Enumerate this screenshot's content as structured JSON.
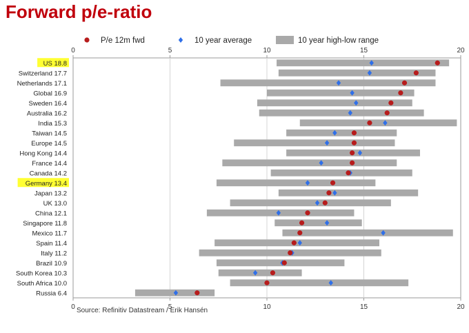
{
  "title": "Forward p/e-ratio",
  "source": "Source: Refinitiv Datastream / Erik Hansén",
  "colors": {
    "title": "#c0000c",
    "pe": "#b71c1c",
    "avg": "#2f6fe8",
    "range": "#a9a9a9",
    "highlight": "#ffff33"
  },
  "chart_data": {
    "type": "range-dot",
    "title": "Forward p/e-ratio",
    "xlim": [
      0,
      20
    ],
    "xticks": [
      0,
      5,
      10,
      15,
      20
    ],
    "xtick_labels": [
      "0",
      "5",
      "10",
      "15",
      "20"
    ],
    "grid": true,
    "legend_position": "top",
    "legend": [
      "P/e 12m fwd",
      "10 year average",
      "10 year high-low range"
    ],
    "categories": [
      "US 18.8",
      "Switzerland 17.7",
      "Netherlands 17.1",
      "Global 16.9",
      "Sweden 16.4",
      "Australia 16.2",
      "India 15.3",
      "Taiwan 14.5",
      "Europe 14.5",
      "Hong Kong 14.4",
      "France 14.4",
      "Canada 14.2",
      "Germany 13.4",
      "Japan 13.2",
      "UK 13.0",
      "China 12.1",
      "Singapore 11.8",
      "Mexico 11.7",
      "Spain 11.4",
      "Italy 11.2",
      "Brazil 10.9",
      "South Korea 10.3",
      "South Africa 10.0",
      "Russia 6.4"
    ],
    "highlighted": [
      "US 18.8",
      "Germany 13.4"
    ],
    "series": [
      {
        "name": "P/e 12m fwd",
        "values": [
          18.8,
          17.7,
          17.1,
          16.9,
          16.4,
          16.2,
          15.3,
          14.5,
          14.5,
          14.4,
          14.4,
          14.2,
          13.4,
          13.2,
          13.0,
          12.1,
          11.8,
          11.7,
          11.4,
          11.2,
          10.9,
          10.3,
          10.0,
          6.4
        ]
      },
      {
        "name": "10 year average",
        "values": [
          15.4,
          15.3,
          13.7,
          14.4,
          14.6,
          14.3,
          16.1,
          13.5,
          13.1,
          14.8,
          12.8,
          14.3,
          12.1,
          13.5,
          12.6,
          10.6,
          13.1,
          16.0,
          11.7,
          11.3,
          10.8,
          9.4,
          13.3,
          5.3
        ]
      },
      {
        "name": "10 year high-low range",
        "low": [
          10.5,
          10.6,
          7.6,
          10.0,
          9.5,
          9.6,
          11.7,
          11.0,
          8.3,
          11.0,
          7.7,
          10.2,
          7.4,
          10.6,
          8.1,
          6.9,
          10.4,
          10.8,
          7.3,
          6.5,
          7.4,
          7.5,
          8.1,
          3.2
        ],
        "high": [
          19.4,
          18.7,
          18.7,
          17.6,
          17.5,
          18.1,
          19.8,
          16.7,
          16.6,
          17.9,
          16.7,
          17.5,
          15.6,
          17.8,
          16.4,
          14.5,
          14.9,
          19.6,
          15.8,
          15.9,
          14.0,
          11.8,
          17.3,
          7.3
        ]
      }
    ]
  }
}
